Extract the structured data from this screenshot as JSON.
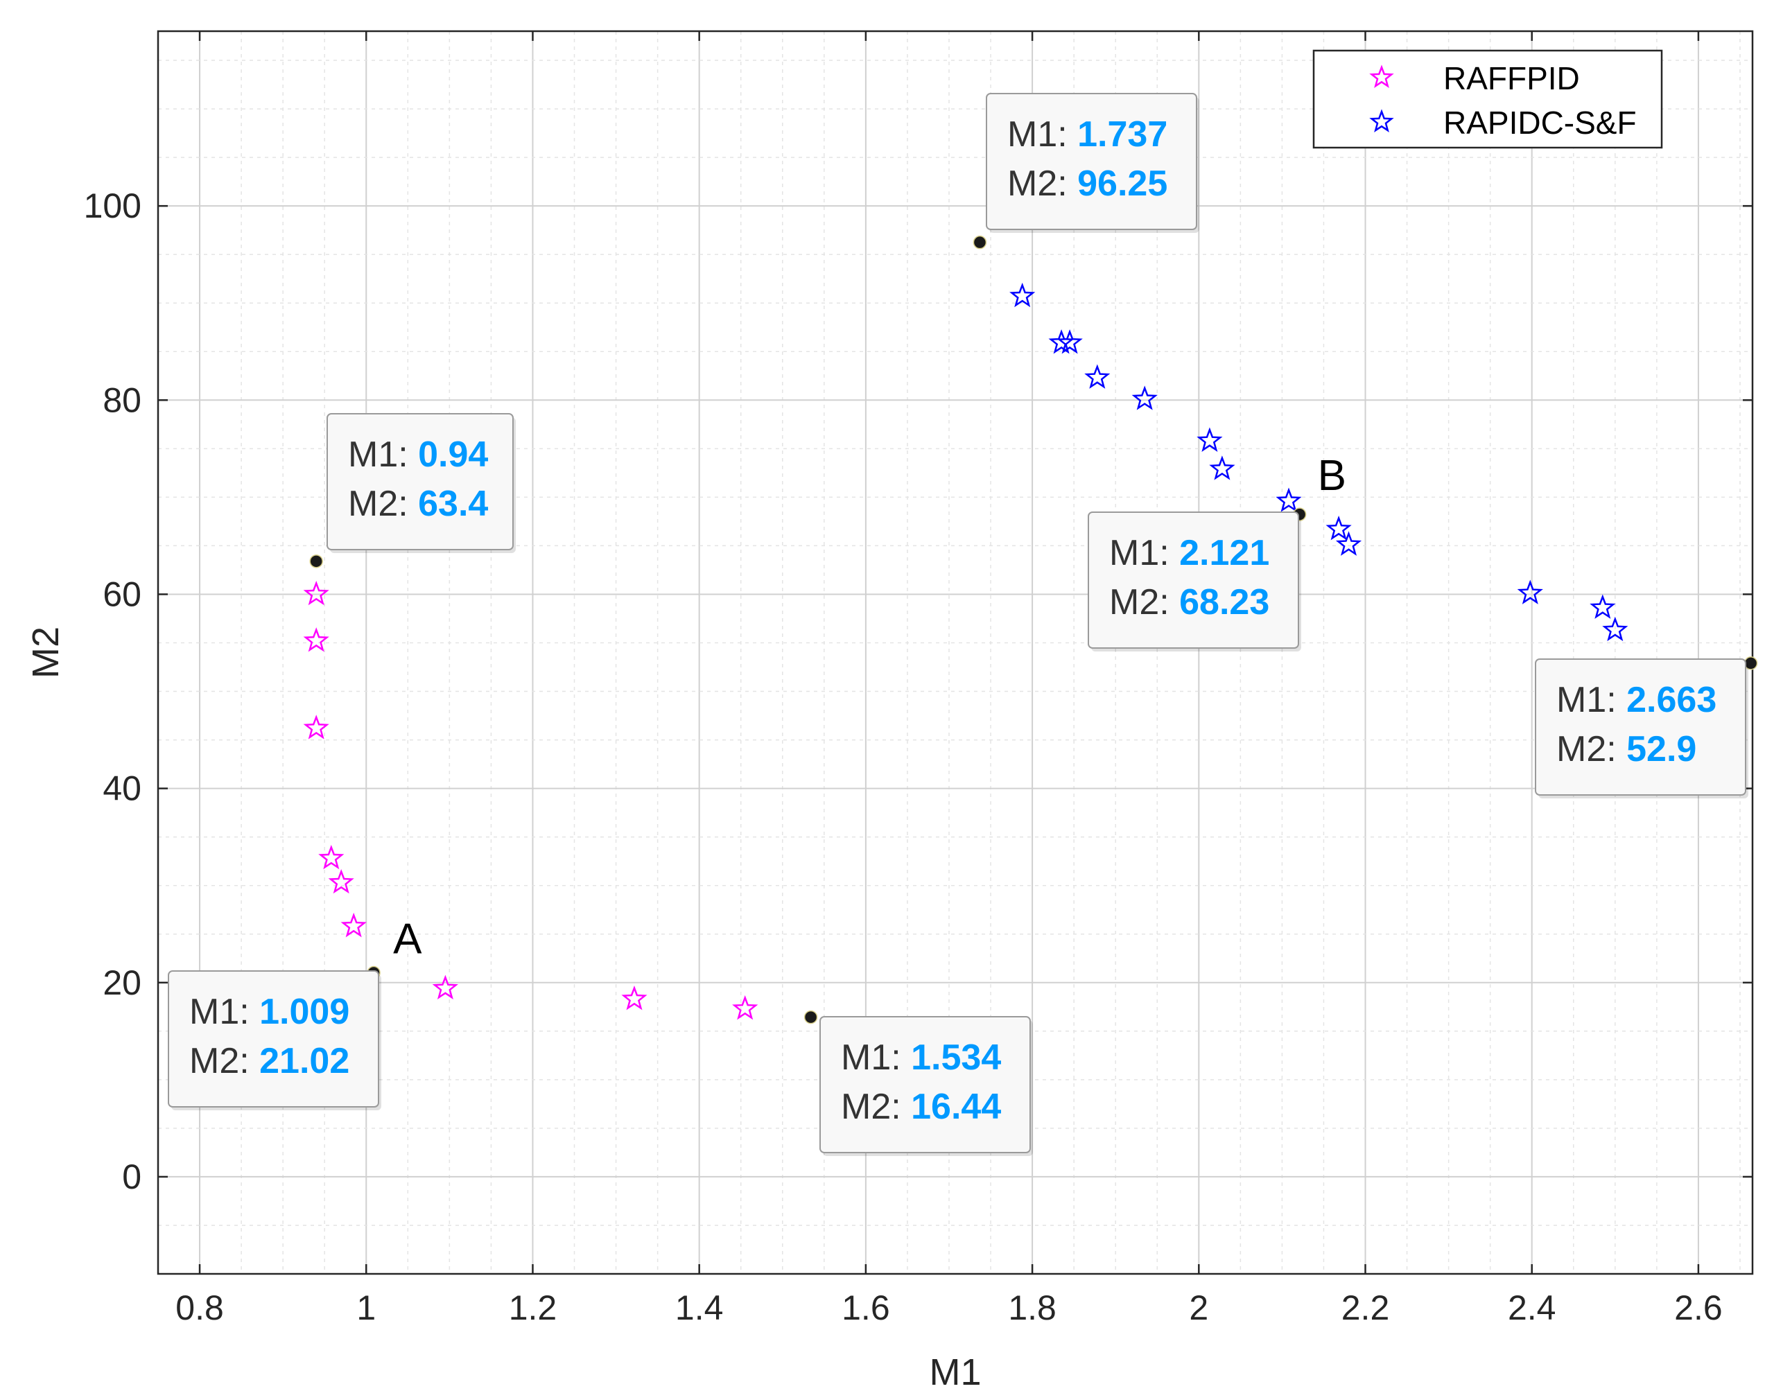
{
  "colors": {
    "raffpid": "#ff00ff",
    "rapidc": "#0000ff",
    "datatip_value": "#0099ff",
    "marker": "#1a1a1a"
  },
  "chart_data": {
    "type": "scatter",
    "title": "",
    "xlabel": "M1",
    "ylabel": "M2",
    "xlim": [
      0.75,
      2.665
    ],
    "ylim": [
      -10,
      118
    ],
    "grid": true,
    "minor_grid": true,
    "x_ticks": [
      0.8,
      1,
      1.2,
      1.4,
      1.6,
      1.8,
      2,
      2.2,
      2.4,
      2.6
    ],
    "x_tick_labels": [
      "0.8",
      "1",
      "1.2",
      "1.4",
      "1.6",
      "1.8",
      "2",
      "2.2",
      "2.4",
      "2.6"
    ],
    "y_ticks": [
      0,
      20,
      40,
      60,
      80,
      100
    ],
    "y_tick_labels": [
      "0",
      "20",
      "40",
      "60",
      "80",
      "100"
    ],
    "legend_position": "top-right",
    "series": [
      {
        "name": "RAFFPID",
        "marker": "star-outline",
        "x": [
          0.94,
          0.94,
          0.94,
          0.958,
          0.97,
          0.985,
          1.095,
          1.322,
          1.455
        ],
        "y": [
          60.0,
          55.2,
          46.2,
          32.8,
          30.3,
          25.8,
          19.4,
          18.3,
          17.3
        ]
      },
      {
        "name": "RAPIDC-S&F",
        "marker": "star-outline",
        "x": [
          1.788,
          1.835,
          1.845,
          1.878,
          1.935,
          2.013,
          2.028,
          2.108,
          2.168,
          2.18,
          2.398,
          2.485,
          2.5
        ],
        "y": [
          90.7,
          85.9,
          85.9,
          82.3,
          80.1,
          75.8,
          72.9,
          69.6,
          66.7,
          65.1,
          60.1,
          58.6,
          56.3
        ]
      }
    ],
    "highlighted_points": [
      {
        "x": 0.94,
        "y": 63.4
      },
      {
        "x": 1.009,
        "y": 21.02
      },
      {
        "x": 1.534,
        "y": 16.44
      },
      {
        "x": 1.737,
        "y": 96.25
      },
      {
        "x": 2.121,
        "y": 68.23
      },
      {
        "x": 2.663,
        "y": 52.9
      }
    ],
    "datatips": [
      {
        "m1_key": "M1:",
        "m1": "0.94",
        "m2_key": "M2:",
        "m2": "63.4"
      },
      {
        "m1_key": "M1:",
        "m1": "1.009",
        "m2_key": "M2:",
        "m2": "21.02"
      },
      {
        "m1_key": "M1:",
        "m1": "1.534",
        "m2_key": "M2:",
        "m2": "16.44"
      },
      {
        "m1_key": "M1:",
        "m1": "1.737",
        "m2_key": "M2:",
        "m2": "96.25"
      },
      {
        "m1_key": "M1:",
        "m1": "2.121",
        "m2_key": "M2:",
        "m2": "68.23"
      },
      {
        "m1_key": "M1:",
        "m1": "2.663",
        "m2_key": "M2:",
        "m2": "52.9"
      }
    ],
    "annotations": [
      {
        "text": "A",
        "x": 1.009,
        "y": 21.02
      },
      {
        "text": "B",
        "x": 2.121,
        "y": 68.23
      }
    ]
  }
}
